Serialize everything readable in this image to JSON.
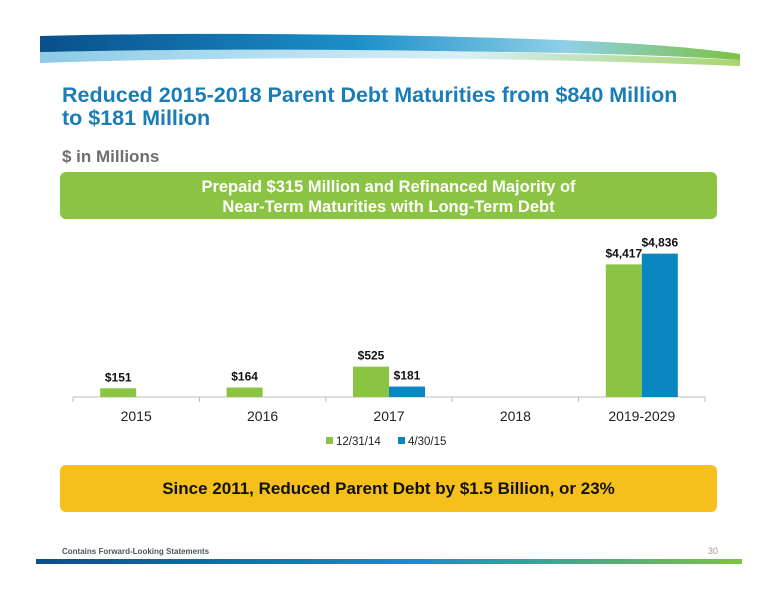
{
  "title": "Reduced 2015-2018 Parent Debt Maturities from $840 Million to $181 Million",
  "subtitle": "$ in Millions",
  "banner_top": {
    "line1": "Prepaid $315 Million and Refinanced Majority of",
    "line2": "Near-Term Maturities with Long-Term Debt"
  },
  "banner_bottom": "Since 2011, Reduced Parent Debt by $1.5 Billion, or 23%",
  "footer": "Contains Forward-Looking Statements",
  "page_number": "30",
  "colors": {
    "title": "#1a7db5",
    "series_1": "#8bc443",
    "series_2": "#0a86c0",
    "banner_top": "#8bc443",
    "banner_bottom": "#f6bf1c"
  },
  "chart_data": {
    "type": "bar",
    "categories": [
      "2015",
      "2016",
      "2017",
      "2018",
      "2019-2029"
    ],
    "series": [
      {
        "name": "12/31/14",
        "values": [
          151,
          164,
          525,
          null,
          4417
        ],
        "labels": [
          "$151",
          "$164",
          "$525",
          "",
          "$4,417"
        ]
      },
      {
        "name": "4/30/15",
        "values": [
          null,
          null,
          181,
          null,
          4836
        ],
        "labels": [
          "",
          "",
          "$181",
          "",
          "$4,836"
        ]
      }
    ],
    "title": "",
    "xlabel": "",
    "ylabel": "",
    "ylim": [
      0,
      4836
    ],
    "scale": "piecewise (axis break between low and high values)",
    "grid": false,
    "legend": "bottom"
  }
}
